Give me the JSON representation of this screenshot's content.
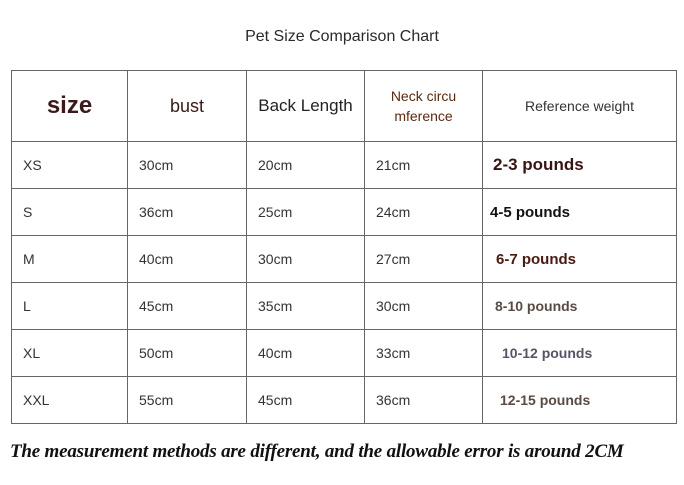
{
  "title": "Pet Size Comparison Chart",
  "headers": {
    "size": "size",
    "bust": "bust",
    "back_length": "Back Length",
    "neck_line1": "Neck circu",
    "neck_line2": "mference",
    "weight": "Reference weight"
  },
  "rows": [
    {
      "size": "XS",
      "bust": "30cm",
      "back": "20cm",
      "neck": "21cm",
      "weight": "2-3 pounds"
    },
    {
      "size": "S",
      "bust": "36cm",
      "back": "25cm",
      "neck": "24cm",
      "weight": "4-5 pounds"
    },
    {
      "size": "M",
      "bust": "40cm",
      "back": "30cm",
      "neck": "27cm",
      "weight": "6-7 pounds"
    },
    {
      "size": "L",
      "bust": "45cm",
      "back": "35cm",
      "neck": "30cm",
      "weight": "8-10 pounds"
    },
    {
      "size": "XL",
      "bust": "50cm",
      "back": "40cm",
      "neck": "33cm",
      "weight": "10-12 pounds"
    },
    {
      "size": "XXL",
      "bust": "55cm",
      "back": "45cm",
      "neck": "36cm",
      "weight": "12-15 pounds"
    }
  ],
  "footer": "The measurement methods are different, and the allowable error is around 2CM"
}
